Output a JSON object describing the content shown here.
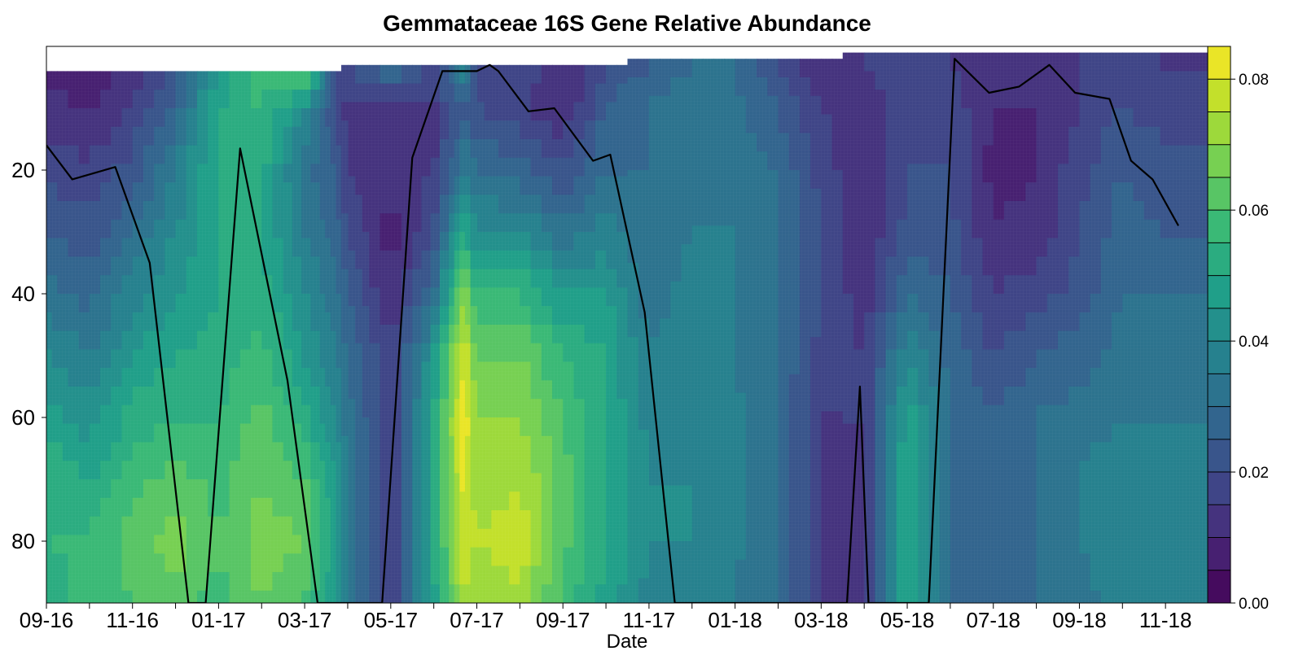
{
  "chart_data": {
    "type": "heatmap",
    "title": "Gemmataceae 16S Gene Relative Abundance",
    "xlabel": "Date",
    "ylabel": "",
    "x_tick_labels": [
      "09-16",
      "11-16",
      "01-17",
      "03-17",
      "05-17",
      "07-17",
      "09-17",
      "11-17",
      "01-18",
      "03-18",
      "05-18",
      "07-18",
      "09-18",
      "11-18"
    ],
    "y_tick_labels": [
      "20",
      "40",
      "60",
      "80"
    ],
    "y_tick_values": [
      20,
      40,
      60,
      80
    ],
    "y_range": [
      0,
      90
    ],
    "y_axis_inverted": true,
    "colorbar": {
      "tick_labels": [
        "0.00",
        "0.02",
        "0.04",
        "0.06",
        "0.08"
      ],
      "tick_values": [
        0,
        0.02,
        0.04,
        0.06,
        0.08
      ],
      "range": [
        0,
        0.085
      ],
      "colormap": "viridis",
      "levels": 17
    },
    "columns": [
      {
        "month": 0.0,
        "top": 4,
        "values": [
          0.008,
          0.012,
          0.018,
          0.025,
          0.032,
          0.04,
          0.048,
          0.055,
          0.055,
          0.05
        ]
      },
      {
        "month": 1.0,
        "top": 4,
        "values": [
          0.006,
          0.01,
          0.016,
          0.022,
          0.028,
          0.035,
          0.042,
          0.05,
          0.056,
          0.058
        ]
      },
      {
        "month": 2.0,
        "top": 4,
        "values": [
          0.01,
          0.016,
          0.022,
          0.03,
          0.038,
          0.045,
          0.052,
          0.058,
          0.062,
          0.06
        ]
      },
      {
        "month": 3.0,
        "top": 4,
        "values": [
          0.02,
          0.028,
          0.035,
          0.04,
          0.045,
          0.05,
          0.055,
          0.062,
          0.068,
          0.062
        ]
      },
      {
        "month": 4.0,
        "top": 4,
        "values": [
          0.045,
          0.05,
          0.052,
          0.05,
          0.05,
          0.052,
          0.055,
          0.058,
          0.06,
          0.058
        ]
      },
      {
        "month": 5.0,
        "top": 4,
        "values": [
          0.06,
          0.055,
          0.052,
          0.05,
          0.052,
          0.058,
          0.062,
          0.065,
          0.068,
          0.065
        ]
      },
      {
        "month": 6.0,
        "top": 4,
        "values": [
          0.07,
          0.04,
          0.032,
          0.035,
          0.04,
          0.045,
          0.052,
          0.06,
          0.065,
          0.06
        ]
      },
      {
        "month": 6.7,
        "top": 4,
        "values": [
          0.02,
          0.02,
          0.025,
          0.028,
          0.032,
          0.036,
          0.04,
          0.045,
          0.048,
          0.045
        ]
      },
      {
        "month": 7.0,
        "top": 3,
        "values": [
          0.02,
          0.012,
          0.015,
          0.02,
          0.025,
          0.03,
          0.032,
          0.035,
          0.035,
          0.032
        ]
      },
      {
        "month": 8.0,
        "top": 3,
        "values": [
          0.03,
          0.015,
          0.01,
          0.008,
          0.01,
          0.015,
          0.015,
          0.015,
          0.015,
          0.015
        ]
      },
      {
        "month": 9.0,
        "top": 3,
        "values": [
          0.02,
          0.012,
          0.015,
          0.02,
          0.03,
          0.045,
          0.05,
          0.05,
          0.05,
          0.048
        ]
      },
      {
        "month": 9.7,
        "top": 3,
        "values": [
          0.04,
          0.025,
          0.035,
          0.05,
          0.07,
          0.08,
          0.085,
          0.082,
          0.08,
          0.075
        ]
      },
      {
        "month": 10.0,
        "top": 3,
        "values": [
          0.015,
          0.02,
          0.03,
          0.04,
          0.055,
          0.065,
          0.07,
          0.072,
          0.075,
          0.07
        ]
      },
      {
        "month": 11.0,
        "top": 3,
        "values": [
          0.02,
          0.015,
          0.028,
          0.04,
          0.055,
          0.065,
          0.07,
          0.075,
          0.078,
          0.074
        ]
      },
      {
        "month": 12.0,
        "top": 3,
        "values": [
          0.01,
          0.01,
          0.02,
          0.032,
          0.045,
          0.055,
          0.06,
          0.062,
          0.062,
          0.058
        ]
      },
      {
        "month": 13.0,
        "top": 3,
        "values": [
          0.02,
          0.025,
          0.03,
          0.038,
          0.045,
          0.05,
          0.05,
          0.05,
          0.05,
          0.048
        ]
      },
      {
        "month": 14.0,
        "top": 2,
        "values": [
          0.025,
          0.03,
          0.03,
          0.03,
          0.032,
          0.035,
          0.038,
          0.04,
          0.04,
          0.038
        ]
      },
      {
        "month": 15.0,
        "top": 2,
        "values": [
          0.03,
          0.035,
          0.035,
          0.035,
          0.038,
          0.04,
          0.04,
          0.04,
          0.04,
          0.038
        ]
      },
      {
        "month": 16.0,
        "top": 2,
        "values": [
          0.03,
          0.032,
          0.032,
          0.035,
          0.035,
          0.035,
          0.036,
          0.036,
          0.036,
          0.035
        ]
      },
      {
        "month": 17.0,
        "top": 2,
        "values": [
          0.02,
          0.025,
          0.03,
          0.03,
          0.03,
          0.03,
          0.03,
          0.03,
          0.03,
          0.03
        ]
      },
      {
        "month": 18.0,
        "top": 2,
        "values": [
          0.01,
          0.015,
          0.018,
          0.02,
          0.02,
          0.018,
          0.015,
          0.015,
          0.015,
          0.015
        ]
      },
      {
        "month": 19.0,
        "top": 1,
        "values": [
          0.015,
          0.01,
          0.01,
          0.01,
          0.012,
          0.015,
          0.015,
          0.015,
          0.015,
          0.015
        ]
      },
      {
        "month": 20.0,
        "top": 1,
        "values": [
          0.02,
          0.018,
          0.02,
          0.022,
          0.03,
          0.04,
          0.048,
          0.052,
          0.052,
          0.05
        ]
      },
      {
        "month": 21.0,
        "top": 1,
        "values": [
          0.015,
          0.018,
          0.02,
          0.022,
          0.025,
          0.028,
          0.03,
          0.03,
          0.03,
          0.028
        ]
      },
      {
        "month": 22.0,
        "top": 1,
        "values": [
          0.012,
          0.01,
          0.008,
          0.01,
          0.015,
          0.02,
          0.025,
          0.025,
          0.025,
          0.025
        ]
      },
      {
        "month": 23.0,
        "top": 1,
        "values": [
          0.012,
          0.01,
          0.01,
          0.012,
          0.018,
          0.025,
          0.03,
          0.03,
          0.03,
          0.03
        ]
      },
      {
        "month": 24.0,
        "top": 1,
        "values": [
          0.015,
          0.015,
          0.018,
          0.02,
          0.022,
          0.028,
          0.032,
          0.035,
          0.035,
          0.032
        ]
      },
      {
        "month": 25.0,
        "top": 1,
        "values": [
          0.018,
          0.02,
          0.025,
          0.028,
          0.03,
          0.032,
          0.035,
          0.04,
          0.04,
          0.038
        ]
      },
      {
        "month": 26.0,
        "top": 1,
        "values": [
          0.015,
          0.018,
          0.022,
          0.025,
          0.03,
          0.032,
          0.035,
          0.035,
          0.035,
          0.035
        ]
      }
    ],
    "line_series": {
      "color": "#000000",
      "points": [
        {
          "month": 0.0,
          "y": 16
        },
        {
          "month": 0.6,
          "y": 21.5
        },
        {
          "month": 1.6,
          "y": 19.5
        },
        {
          "month": 2.4,
          "y": 35
        },
        {
          "month": 3.3,
          "y": 90
        },
        {
          "month": 3.7,
          "y": 90
        },
        {
          "month": 4.5,
          "y": 16.5
        },
        {
          "month": 5.6,
          "y": 54
        },
        {
          "month": 6.3,
          "y": 90
        },
        {
          "month": 7.8,
          "y": 90
        },
        {
          "month": 8.5,
          "y": 18
        },
        {
          "month": 9.2,
          "y": 4
        },
        {
          "month": 10.0,
          "y": 4
        },
        {
          "month": 10.3,
          "y": 3
        },
        {
          "month": 10.5,
          "y": 4
        },
        {
          "month": 11.2,
          "y": 10.5
        },
        {
          "month": 11.8,
          "y": 10
        },
        {
          "month": 12.7,
          "y": 18.5
        },
        {
          "month": 13.1,
          "y": 17.5
        },
        {
          "month": 13.9,
          "y": 43
        },
        {
          "month": 14.6,
          "y": 90
        },
        {
          "month": 18.6,
          "y": 90
        },
        {
          "month": 18.9,
          "y": 55
        },
        {
          "month": 19.1,
          "y": 90
        },
        {
          "month": 20.5,
          "y": 90
        },
        {
          "month": 21.1,
          "y": 2
        },
        {
          "month": 21.9,
          "y": 7.5
        },
        {
          "month": 22.6,
          "y": 6.5
        },
        {
          "month": 23.3,
          "y": 3
        },
        {
          "month": 23.9,
          "y": 7.5
        },
        {
          "month": 24.7,
          "y": 8.5
        },
        {
          "month": 25.2,
          "y": 18.5
        },
        {
          "month": 25.7,
          "y": 21.5
        },
        {
          "month": 26.3,
          "y": 29
        }
      ]
    }
  }
}
